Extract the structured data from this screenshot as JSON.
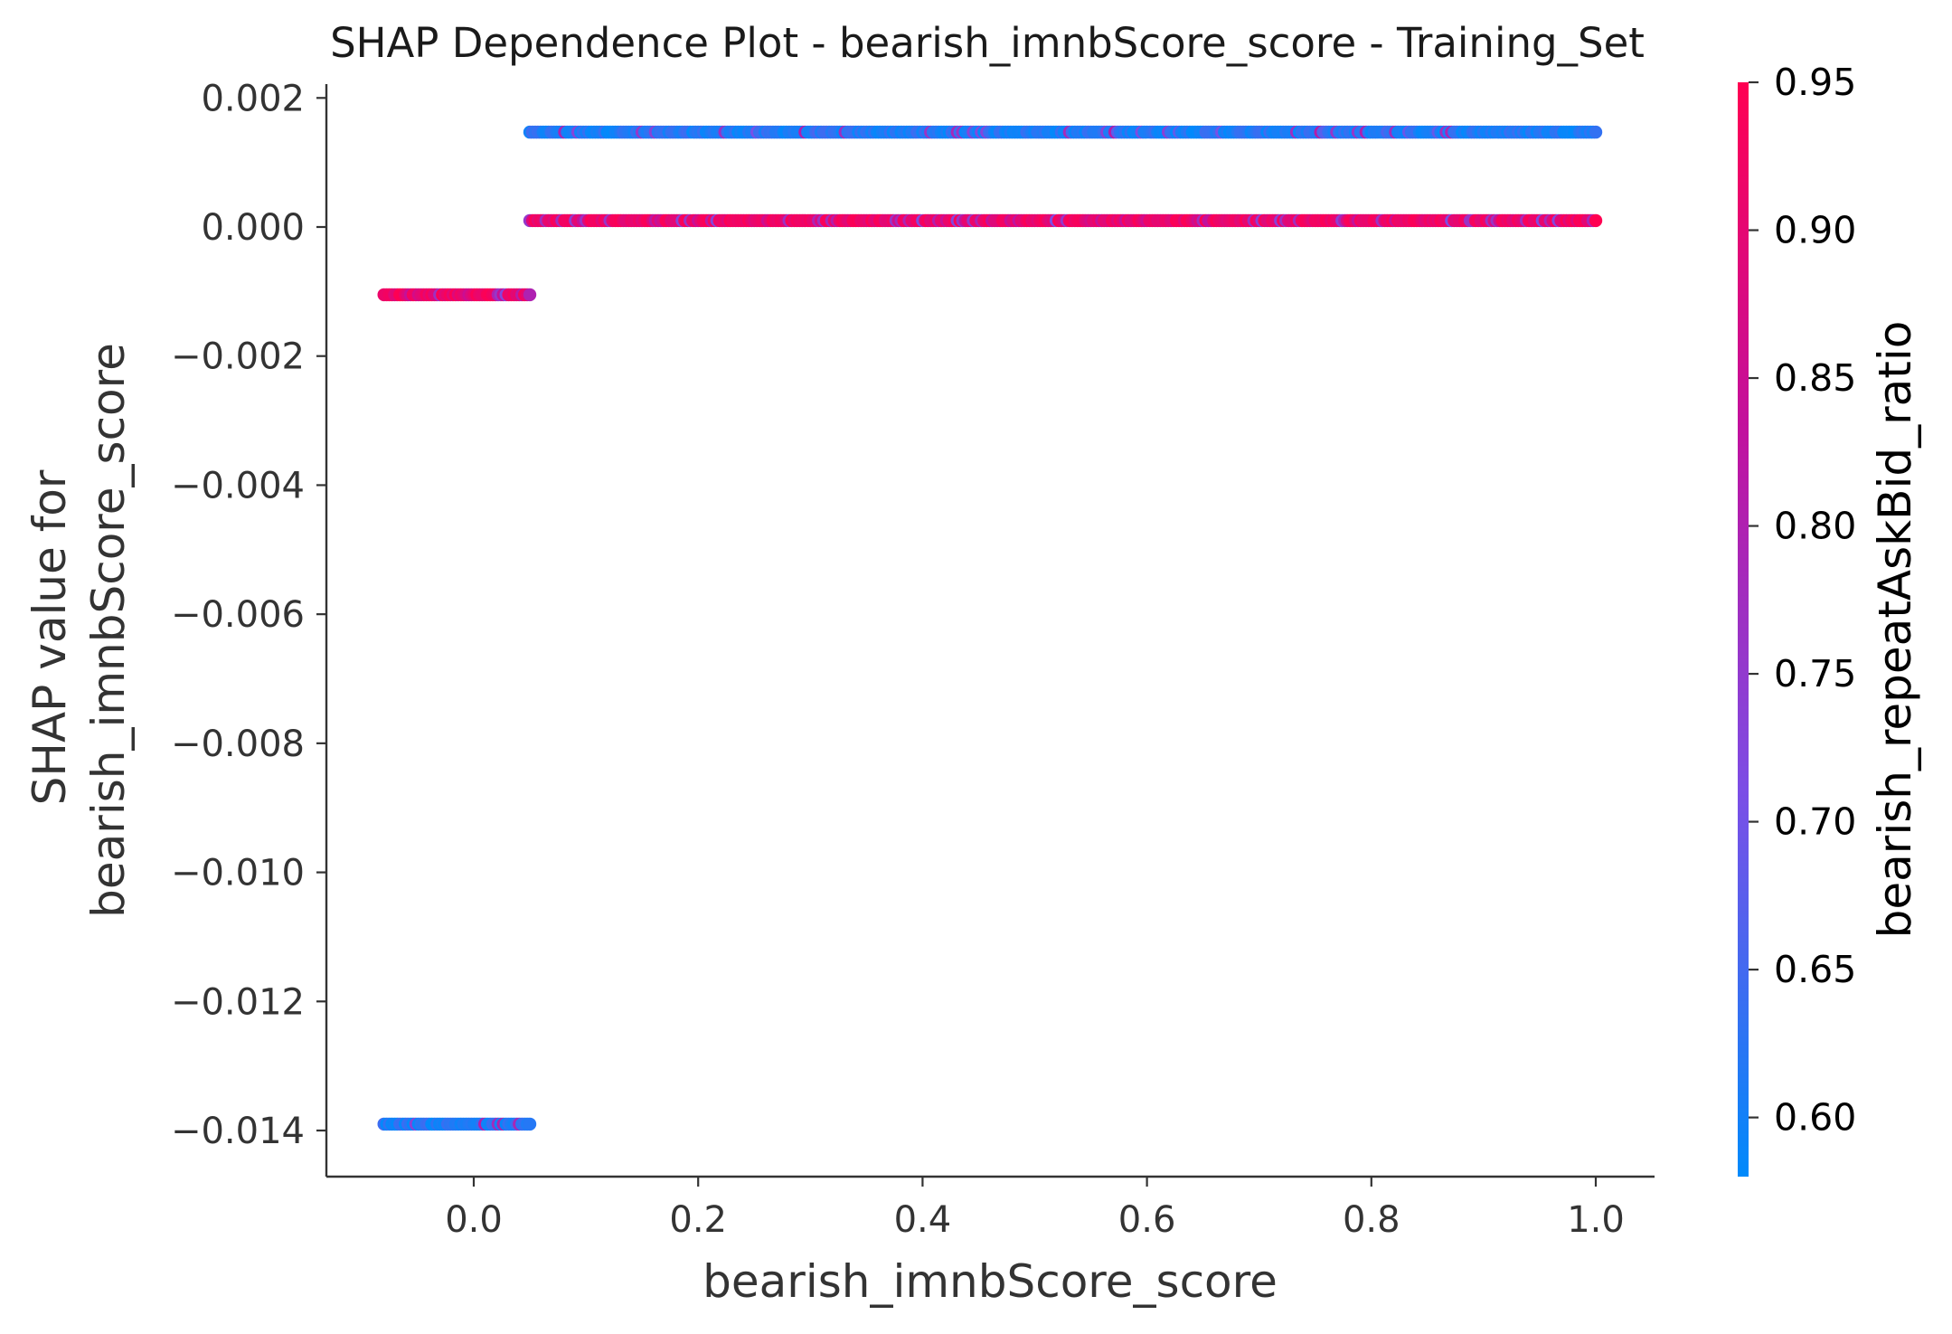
{
  "chart_data": {
    "type": "scatter",
    "title": "SHAP Dependence Plot - bearish_imnbScore_score - Training_Set",
    "xlabel": "bearish_imnbScore_score",
    "ylabel_lines": [
      "SHAP value for",
      "bearish_imnbScore_score"
    ],
    "xlim": [
      -0.13,
      1.05
    ],
    "ylim": [
      -0.0146,
      0.0022
    ],
    "x_ticks": [
      0.0,
      0.2,
      0.4,
      0.6,
      0.8,
      1.0
    ],
    "x_tick_labels": [
      "0.0",
      "0.2",
      "0.4",
      "0.6",
      "0.8",
      "1.0"
    ],
    "y_ticks": [
      0.002,
      0.0,
      -0.002,
      -0.004,
      -0.006,
      -0.008,
      -0.01,
      -0.012,
      -0.014
    ],
    "y_tick_labels": [
      "0.002",
      "0.000",
      "−0.002",
      "−0.004",
      "−0.006",
      "−0.008",
      "−0.010",
      "−0.012",
      "−0.014"
    ],
    "colorbar": {
      "label": "bearish_repeatAskBid_ratio",
      "range": [
        0.58,
        0.95
      ],
      "ticks": [
        0.6,
        0.65,
        0.7,
        0.75,
        0.8,
        0.85,
        0.9,
        0.95
      ],
      "tick_labels": [
        "0.60",
        "0.65",
        "0.70",
        "0.75",
        "0.80",
        "0.85",
        "0.90",
        "0.95"
      ],
      "colors": [
        "#008afb",
        "#7b4ee6",
        "#c1119e",
        "#ff0052"
      ]
    },
    "bands": [
      {
        "name": "upper-band",
        "shap_value": 0.00147,
        "x_range": [
          0.05,
          1.0
        ],
        "dominant_color_value": "low"
      },
      {
        "name": "zero-band",
        "shap_value": 0.0001,
        "x_range": [
          0.05,
          1.0
        ],
        "dominant_color_value": "high"
      },
      {
        "name": "negative-small-band",
        "shap_value": -0.00105,
        "x_range": [
          -0.08,
          0.05
        ],
        "dominant_color_value": "high"
      },
      {
        "name": "negative-large-band",
        "shap_value": -0.0139,
        "x_range": [
          -0.08,
          0.05
        ],
        "dominant_color_value": "low"
      }
    ],
    "grid": false,
    "legend": "colorbar-right"
  }
}
